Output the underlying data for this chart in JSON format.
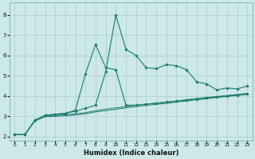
{
  "xlabel": "Humidex (Indice chaleur)",
  "bg_color": "#cce8e8",
  "grid_color": "#aacccc",
  "line_color": "#1a7a6e",
  "xlim": [
    -0.5,
    23.5
  ],
  "ylim": [
    1.8,
    8.6
  ],
  "xticks": [
    0,
    1,
    2,
    3,
    4,
    5,
    6,
    7,
    8,
    9,
    10,
    11,
    12,
    13,
    14,
    15,
    16,
    17,
    18,
    19,
    20,
    21,
    22,
    23
  ],
  "yticks": [
    2,
    3,
    4,
    5,
    6,
    7,
    8
  ],
  "series_spike_x": [
    0,
    1,
    2,
    3,
    4,
    5,
    6,
    7,
    8,
    9,
    10,
    11,
    12,
    13,
    14,
    15,
    16,
    17,
    18,
    19,
    20,
    21,
    22,
    23
  ],
  "series_spike_y": [
    2.1,
    2.1,
    2.8,
    3.05,
    3.1,
    3.15,
    3.25,
    3.4,
    3.55,
    5.2,
    8.0,
    6.3,
    6.0,
    5.4,
    5.35,
    5.55,
    5.5,
    5.3,
    4.7,
    4.6,
    4.3,
    4.4,
    4.35,
    4.5
  ],
  "series_hump_x": [
    0,
    1,
    2,
    3,
    4,
    5,
    6,
    7,
    8,
    9,
    10,
    11,
    12,
    13,
    14,
    15,
    16,
    17,
    18,
    19,
    20,
    21,
    22,
    23
  ],
  "series_hump_y": [
    2.1,
    2.1,
    2.8,
    3.05,
    3.1,
    3.15,
    3.3,
    5.1,
    6.55,
    5.4,
    5.3,
    3.55,
    3.55,
    3.6,
    3.65,
    3.7,
    3.75,
    3.8,
    3.85,
    3.9,
    3.95,
    4.0,
    4.05,
    4.1
  ],
  "series_low1_x": [
    0,
    1,
    2,
    3,
    4,
    5,
    6,
    7,
    8,
    9,
    10,
    11,
    12,
    13,
    14,
    15,
    16,
    17,
    18,
    19,
    20,
    21,
    22,
    23
  ],
  "series_low1_y": [
    2.1,
    2.1,
    2.82,
    3.02,
    3.05,
    3.08,
    3.12,
    3.18,
    3.28,
    3.35,
    3.42,
    3.48,
    3.55,
    3.6,
    3.65,
    3.7,
    3.75,
    3.82,
    3.88,
    3.93,
    3.98,
    4.03,
    4.08,
    4.13
  ],
  "series_low2_x": [
    0,
    1,
    2,
    3,
    4,
    5,
    6,
    7,
    8,
    9,
    10,
    11,
    12,
    13,
    14,
    15,
    16,
    17,
    18,
    19,
    20,
    21,
    22,
    23
  ],
  "series_low2_y": [
    2.1,
    2.1,
    2.78,
    2.98,
    3.0,
    3.03,
    3.07,
    3.13,
    3.22,
    3.28,
    3.35,
    3.42,
    3.48,
    3.54,
    3.59,
    3.64,
    3.7,
    3.76,
    3.82,
    3.87,
    3.93,
    3.98,
    4.03,
    4.08
  ]
}
